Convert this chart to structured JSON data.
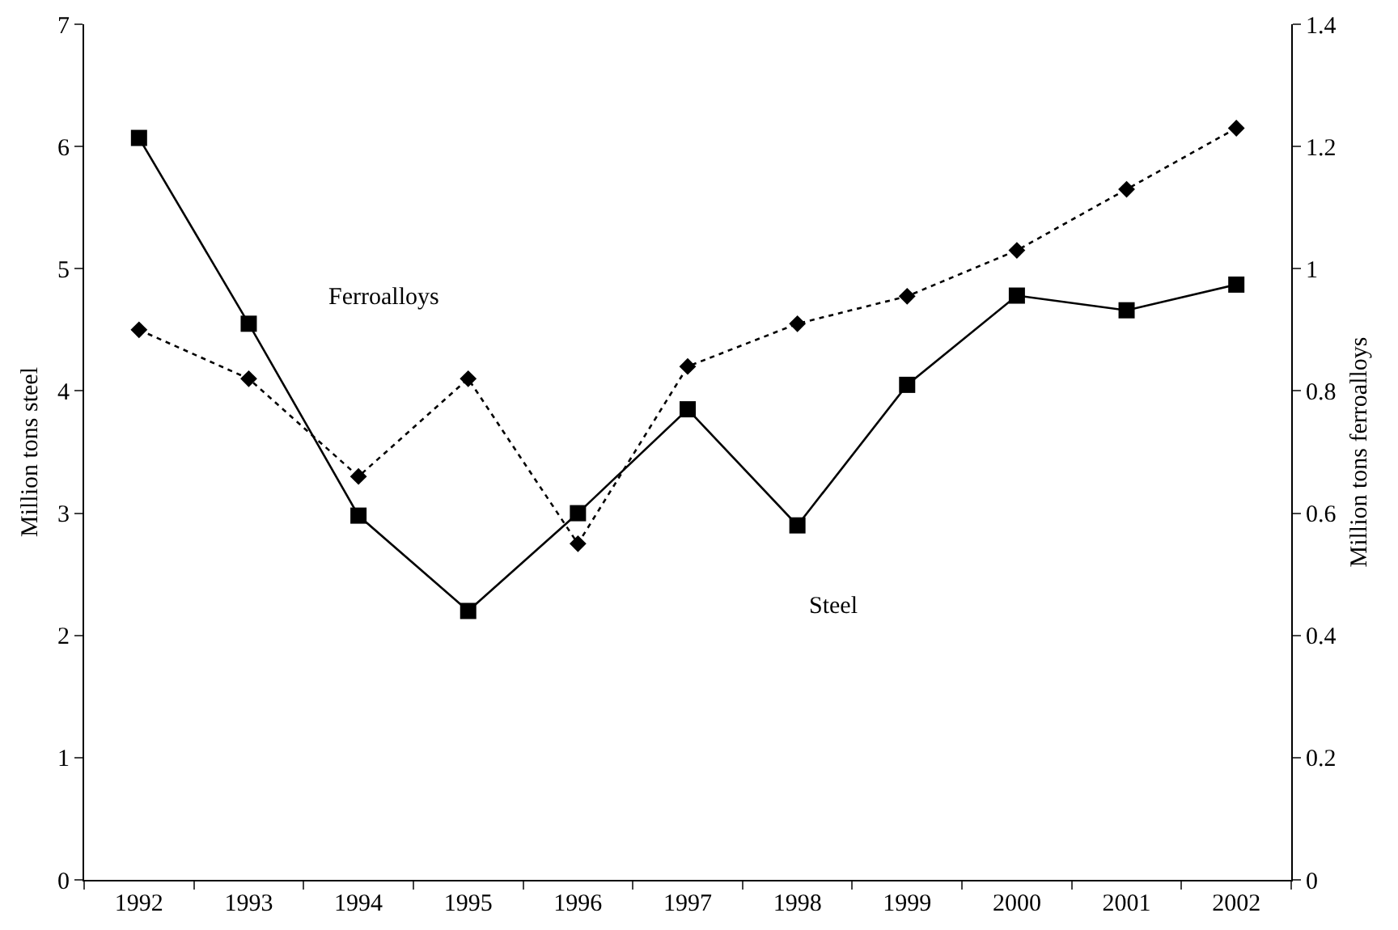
{
  "chart_data": {
    "type": "line",
    "ylabel": "Million tons steel",
    "y2label": "Million tons ferroalloys",
    "categories": [
      "1992",
      "1993",
      "1994",
      "1995",
      "1996",
      "1997",
      "1998",
      "1999",
      "2000",
      "2001",
      "2002"
    ],
    "series": [
      {
        "name": "Steel",
        "color": "#000000",
        "marker": "square",
        "line_style": "solid",
        "values": [
          6.07,
          4.55,
          2.98,
          2.2,
          3.0,
          3.85,
          2.9,
          4.05,
          4.78,
          4.66,
          4.87
        ]
      },
      {
        "name": "Ferroalloys",
        "color": "#000000",
        "marker": "diamond",
        "line_style": "dotted",
        "axis": "y2",
        "values": [
          0.9,
          0.82,
          0.66,
          0.82,
          0.55,
          0.84,
          0.91,
          0.955,
          1.03,
          1.13,
          1.23
        ]
      }
    ],
    "ylim": [
      0,
      7
    ],
    "yticks": [
      0,
      1,
      2,
      3,
      4,
      5,
      6,
      7
    ],
    "y2lim": [
      0,
      1.4
    ],
    "y2ticks": [
      0,
      0.2,
      0.4,
      0.6,
      0.8,
      1,
      1.2,
      1.4
    ],
    "grid": false,
    "legend": false
  }
}
